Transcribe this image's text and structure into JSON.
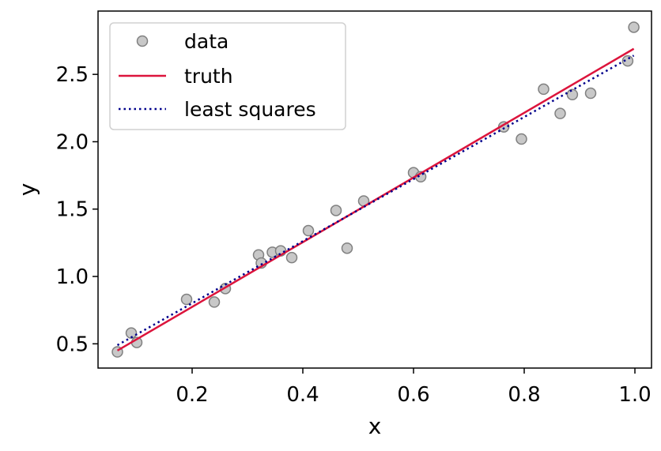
{
  "chart_data": {
    "type": "scatter",
    "xlabel": "x",
    "ylabel": "y",
    "xlim": [
      0.03,
      1.03
    ],
    "ylim": [
      0.32,
      2.97
    ],
    "xticks": [
      0.2,
      0.4,
      0.6,
      0.8,
      1.0
    ],
    "xtick_labels": [
      "0.2",
      "0.4",
      "0.6",
      "0.8",
      "1.0"
    ],
    "yticks": [
      0.5,
      1.0,
      1.5,
      2.0,
      2.5
    ],
    "ytick_labels": [
      "0.5",
      "1.0",
      "1.5",
      "2.0",
      "2.5"
    ],
    "grid": false,
    "legend_position": "top-left",
    "series": [
      {
        "name": "data",
        "kind": "points",
        "color": "#c8c8c8",
        "edge_color": "#808080",
        "x": [
          0.065,
          0.09,
          0.1,
          0.19,
          0.24,
          0.26,
          0.32,
          0.325,
          0.345,
          0.36,
          0.38,
          0.41,
          0.46,
          0.48,
          0.51,
          0.6,
          0.613,
          0.763,
          0.795,
          0.835,
          0.865,
          0.887,
          0.92,
          0.987,
          0.998
        ],
        "y": [
          0.44,
          0.58,
          0.51,
          0.83,
          0.81,
          0.91,
          1.16,
          1.1,
          1.18,
          1.19,
          1.14,
          1.34,
          1.49,
          1.21,
          1.56,
          1.77,
          1.74,
          2.11,
          2.02,
          2.39,
          2.21,
          2.35,
          2.36,
          2.6,
          2.85
        ]
      },
      {
        "name": "truth",
        "kind": "line",
        "style": "solid",
        "color": "#dc143c",
        "x": [
          0.065,
          0.998
        ],
        "y": [
          0.45,
          2.69
        ]
      },
      {
        "name": "least squares",
        "kind": "line",
        "style": "dotted",
        "color": "#00008b",
        "x": [
          0.065,
          0.998
        ],
        "y": [
          0.49,
          2.64
        ]
      }
    ]
  }
}
